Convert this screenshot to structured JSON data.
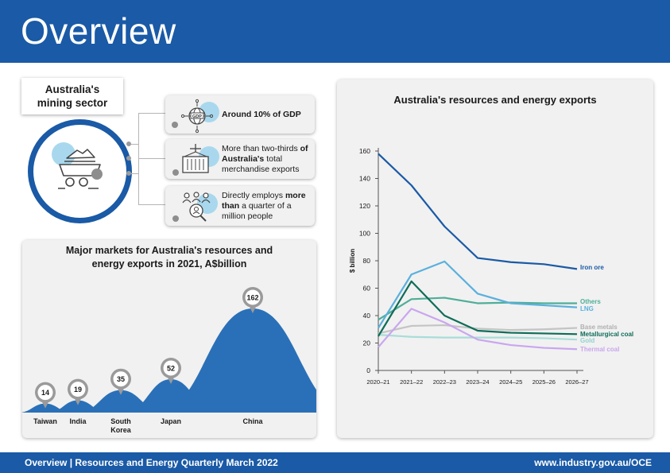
{
  "header": {
    "title": "Overview"
  },
  "sector": {
    "title_line1": "Australia's",
    "title_line2": "mining sector",
    "facts": [
      {
        "icon": "gdp-globe-icon",
        "text": "Around 10% of GDP"
      },
      {
        "icon": "shipping-container-icon",
        "text_plain1": "More than two-thirds",
        "text_bold": "of Australia's",
        "text_plain2": "total merchandise exports"
      },
      {
        "icon": "people-search-icon",
        "text_plain1": "Directly employs",
        "text_bold": "more than",
        "text_plain2": "a quarter of a million people"
      }
    ]
  },
  "markets": {
    "title_line1": "Major markets for Australia's resources and",
    "title_line2": "energy exports in 2021, A$billion"
  },
  "exports": {
    "title": "Australia's resources and energy exports"
  },
  "footer": {
    "left": "Overview | Resources and Energy Quarterly March 2022",
    "right": "www.industry.gov.au/OCE"
  },
  "colors": {
    "brand": "#1a5aa6",
    "panel": "#f1f1f1",
    "mountain": "#2a70b8"
  },
  "chart_data": [
    {
      "type": "area",
      "title": "Major markets for Australia's resources and energy exports in 2021, A$billion",
      "categories": [
        "Taiwan",
        "India",
        "South Korea",
        "Japan",
        "China"
      ],
      "category_lines": [
        [
          "Taiwan"
        ],
        [
          "India"
        ],
        [
          "South",
          "Korea"
        ],
        [
          "Japan"
        ],
        [
          "China"
        ]
      ],
      "values": [
        14,
        19,
        35,
        52,
        162
      ]
    },
    {
      "type": "line",
      "title": "Australia's resources and energy exports",
      "xlabel": "",
      "ylabel": "$ billion",
      "x": [
        "2020–21",
        "2021–22",
        "2022–23",
        "2023–24",
        "2024–25",
        "2025–26",
        "2026–27"
      ],
      "ylim": [
        0,
        160
      ],
      "yticks": [
        0,
        20,
        40,
        60,
        80,
        100,
        120,
        140,
        160
      ],
      "grid": false,
      "series": [
        {
          "name": "Iron ore",
          "color": "#1a5aa6",
          "values": [
            158,
            135,
            105,
            82,
            79,
            77.5,
            74
          ]
        },
        {
          "name": "Others",
          "color": "#4fae98",
          "values": [
            37,
            52,
            53,
            49,
            49.5,
            49,
            49
          ]
        },
        {
          "name": "LNG",
          "color": "#5ab0dd",
          "values": [
            31,
            70,
            79.5,
            56,
            49,
            47.5,
            46
          ]
        },
        {
          "name": "Base metals",
          "color": "#c4c4c4",
          "values": [
            27,
            32.5,
            33,
            30.5,
            29.5,
            30,
            31
          ]
        },
        {
          "name": "Metallurgical coal",
          "color": "#0e6d58",
          "values": [
            25,
            65,
            40,
            29,
            27.5,
            27,
            26.5
          ]
        },
        {
          "name": "Gold",
          "color": "#a8ddd8",
          "values": [
            26,
            24.5,
            24,
            24,
            24,
            23.5,
            22.5
          ]
        },
        {
          "name": "Thermal coal",
          "color": "#c9a6ee",
          "values": [
            17,
            45,
            35,
            22.5,
            18.5,
            16.5,
            15.5
          ]
        }
      ]
    }
  ]
}
